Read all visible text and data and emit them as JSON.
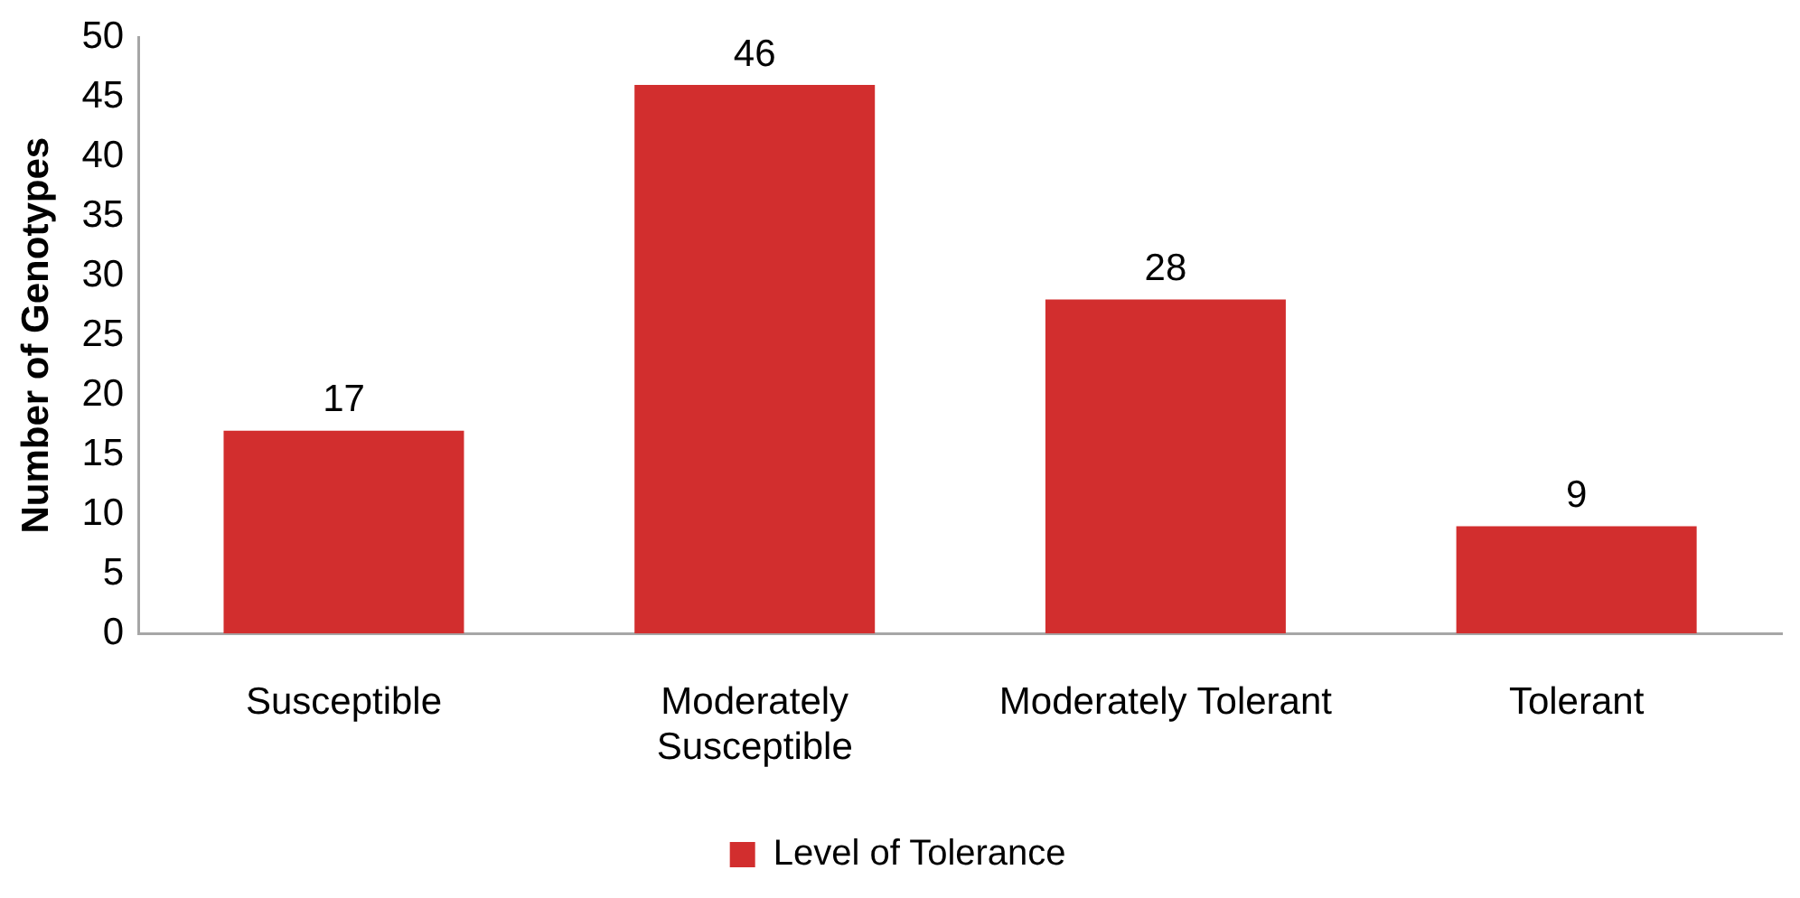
{
  "chart_data": {
    "type": "bar",
    "ylabel": "Number of Genotypes",
    "categories": [
      "Susceptible",
      "Moderately Susceptible",
      "Moderately Tolerant",
      "Tolerant"
    ],
    "series": [
      {
        "name": "Level of Tolerance",
        "color": "#d22e2e",
        "values": [
          17,
          46,
          28,
          9
        ]
      }
    ],
    "ylim": [
      0,
      50
    ],
    "yticks": [
      0,
      5,
      10,
      15,
      20,
      25,
      30,
      35,
      40,
      45,
      50
    ],
    "legend": "bottom",
    "data_labels": true
  }
}
